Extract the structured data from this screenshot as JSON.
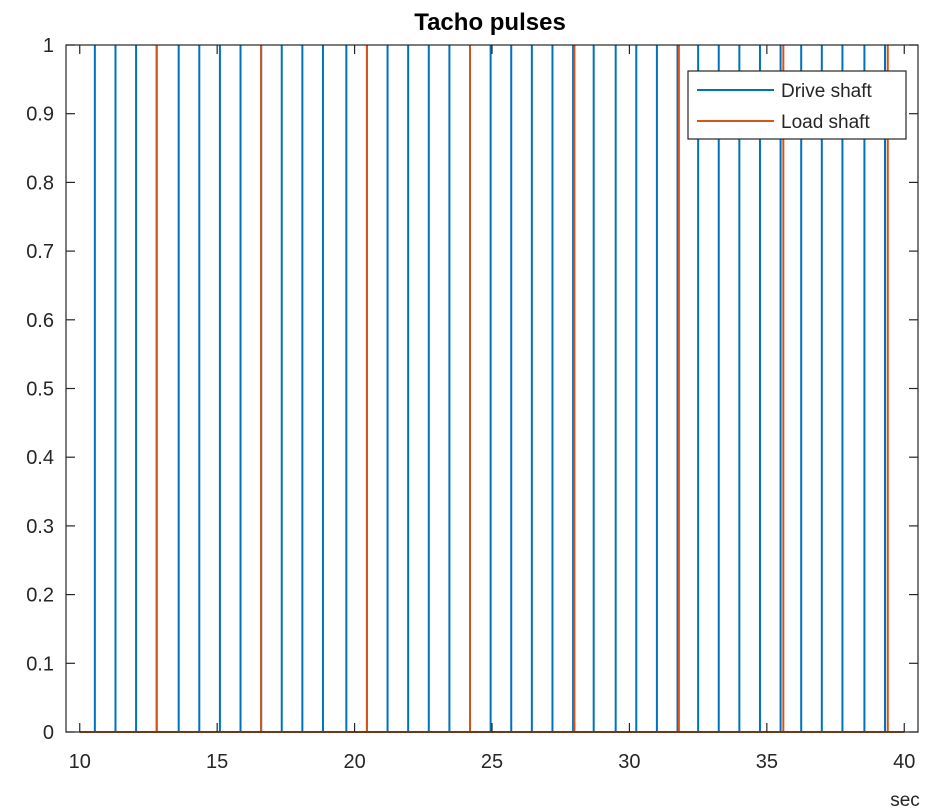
{
  "chart_data": {
    "type": "line",
    "title": "Tacho pulses",
    "xlabel": "sec",
    "ylabel": "",
    "xlim": [
      9.5,
      40.5
    ],
    "ylim": [
      0,
      1
    ],
    "xticks": [
      10,
      15,
      20,
      25,
      30,
      35,
      40
    ],
    "yticks": [
      0,
      0.1,
      0.2,
      0.3,
      0.4,
      0.5,
      0.6,
      0.7,
      0.8,
      0.9,
      1
    ],
    "ytick_labels": [
      "0",
      "0.1",
      "0.2",
      "0.3",
      "0.4",
      "0.5",
      "0.6",
      "0.7",
      "0.8",
      "0.9",
      "1"
    ],
    "grid": false,
    "legend_position": "top-right",
    "baseline": {
      "x_start": 10,
      "x_end": 40
    },
    "series": [
      {
        "name": "Drive shaft",
        "color": "#0072BD",
        "pulse_times": [
          10.55,
          11.3,
          12.05,
          12.8,
          13.6,
          14.35,
          15.1,
          15.85,
          16.6,
          17.35,
          18.1,
          18.85,
          19.7,
          20.45,
          21.2,
          21.95,
          22.7,
          23.45,
          24.2,
          24.95,
          25.7,
          26.45,
          27.2,
          27.95,
          28.7,
          29.5,
          30.25,
          31.0,
          31.75,
          32.5,
          33.25,
          34.0,
          34.75,
          35.5,
          36.25,
          37.0,
          37.75,
          38.55,
          39.3
        ]
      },
      {
        "name": "Load shaft",
        "color": "#D95319",
        "pulse_times": [
          12.8,
          16.6,
          20.45,
          24.2,
          28.0,
          31.8,
          35.6,
          39.4
        ]
      }
    ]
  }
}
